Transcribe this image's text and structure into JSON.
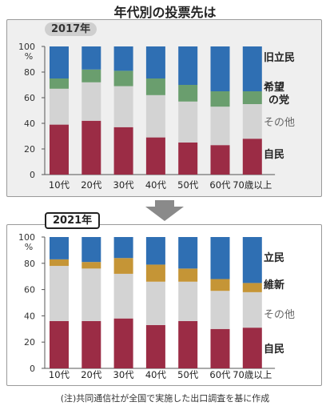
{
  "title": "年代別の投票先は",
  "note": "(注)共同通信社が全国で実施した出口調査を基に作成",
  "chart_data": [
    {
      "type": "bar",
      "stacked": true,
      "year_label": "2017年",
      "categories": [
        "10代",
        "20代",
        "30代",
        "40代",
        "50代",
        "60代",
        "70歳以上"
      ],
      "ylim": [
        0,
        100
      ],
      "yticks": [
        0,
        20,
        40,
        60,
        80,
        100
      ],
      "y_unit": "%",
      "series": [
        {
          "name": "自民",
          "color": "#9b2c45",
          "values": [
            39,
            42,
            37,
            29,
            25,
            23,
            28
          ]
        },
        {
          "name": "その他",
          "color": "#d3d3d3",
          "values": [
            28,
            30,
            32,
            33,
            32,
            30,
            27
          ]
        },
        {
          "name": "希望の党",
          "color": "#6a9e6e",
          "values": [
            8,
            10,
            12,
            13,
            13,
            12,
            10
          ]
        },
        {
          "name": "旧立民",
          "color": "#2f6fb3",
          "values": [
            25,
            18,
            19,
            25,
            30,
            35,
            35
          ]
        }
      ],
      "legend_labels": [
        {
          "text": "旧立民",
          "series": 3
        },
        {
          "text": "希望\nの党",
          "series": 2
        },
        {
          "text": "その他",
          "series": 1
        },
        {
          "text": "自民",
          "series": 0
        }
      ]
    },
    {
      "type": "bar",
      "stacked": true,
      "year_label": "2021年",
      "categories": [
        "10代",
        "20代",
        "30代",
        "40代",
        "50代",
        "60代",
        "70歳以上"
      ],
      "ylim": [
        0,
        100
      ],
      "yticks": [
        0,
        20,
        40,
        60,
        80,
        100
      ],
      "y_unit": "%",
      "series": [
        {
          "name": "自民",
          "color": "#9b2c45",
          "values": [
            36,
            36,
            38,
            33,
            36,
            30,
            31
          ]
        },
        {
          "name": "その他",
          "color": "#d3d3d3",
          "values": [
            42,
            40,
            34,
            33,
            30,
            29,
            27
          ]
        },
        {
          "name": "維新",
          "color": "#c59536",
          "values": [
            5,
            5,
            12,
            13,
            10,
            9,
            7
          ]
        },
        {
          "name": "立民",
          "color": "#2f6fb3",
          "values": [
            17,
            19,
            16,
            21,
            24,
            32,
            35
          ]
        }
      ],
      "legend_labels": [
        {
          "text": "立民",
          "series": 3
        },
        {
          "text": "維新",
          "series": 2
        },
        {
          "text": "その他",
          "series": 1
        },
        {
          "text": "自民",
          "series": 0
        }
      ]
    }
  ],
  "arrow_color": "#8a8a8a"
}
